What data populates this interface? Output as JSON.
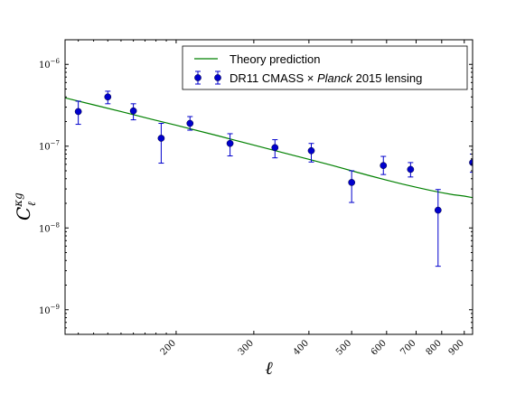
{
  "chart_data": {
    "type": "scatter",
    "xscale": "log",
    "yscale": "log",
    "xlim": [
      112,
      940
    ],
    "ylim": [
      5e-10,
      2e-06
    ],
    "xticks": [
      200,
      300,
      400,
      500,
      600,
      700,
      800,
      900
    ],
    "xtick_labels": [
      "200",
      "300",
      "400",
      "500",
      "600",
      "700",
      "800",
      "900"
    ],
    "yticks": [
      1e-09,
      1e-08,
      1e-07,
      1e-06
    ],
    "ytick_labels": [
      {
        "base": "10",
        "exp": "−9"
      },
      {
        "base": "10",
        "exp": "−8"
      },
      {
        "base": "10",
        "exp": "−7"
      },
      {
        "base": "10",
        "exp": "−6"
      }
    ],
    "xlabel": "ℓ",
    "ylabel": {
      "base": "C",
      "sup": "κg",
      "sub": "ℓ"
    },
    "legend_position": "top-right",
    "legend": [
      {
        "kind": "line",
        "label": "Theory prediction"
      },
      {
        "kind": "errorbar",
        "label_parts": [
          {
            "text": "DR11 CMASS ",
            "italic": false
          },
          {
            "text": "×",
            "italic": false
          },
          {
            "text": " ",
            "italic": false
          },
          {
            "text": "Planck",
            "italic": true
          },
          {
            "text": " 2015 lensing",
            "italic": false
          }
        ]
      }
    ],
    "series": [
      {
        "kind": "line",
        "color": "#008000",
        "x": [
          112,
          130,
          150,
          175,
          200,
          250,
          300,
          350,
          400,
          450,
          500,
          550,
          600,
          650,
          700,
          750,
          800,
          850,
          900,
          940
        ],
        "y": [
          3.9e-07,
          3.2e-07,
          2.65e-07,
          2.15e-07,
          1.8e-07,
          1.33e-07,
          1.03e-07,
          8.3e-08,
          6.9e-08,
          5.85e-08,
          5e-08,
          4.35e-08,
          3.85e-08,
          3.45e-08,
          3.15e-08,
          2.9e-08,
          2.7e-08,
          2.55e-08,
          2.45e-08,
          2.35e-08
        ]
      },
      {
        "kind": "errorbar",
        "color": "#0000cc",
        "x": [
          120,
          140,
          160,
          185,
          215,
          265,
          335,
          405,
          500,
          590,
          680,
          785,
          940
        ],
        "y": [
          2.65e-07,
          4e-07,
          2.7e-07,
          1.25e-07,
          1.9e-07,
          1.08e-07,
          9.6e-08,
          8.8e-08,
          3.6e-08,
          5.8e-08,
          5.2e-08,
          1.65e-08,
          6.3e-08
        ],
        "yerr_low": [
          1.85e-07,
          3.3e-07,
          2.1e-07,
          6.2e-08,
          1.57e-07,
          7.6e-08,
          7.2e-08,
          6.4e-08,
          2.05e-08,
          4.5e-08,
          4.2e-08,
          3.4e-09,
          4.8e-08
        ],
        "yerr_high": [
          3.55e-07,
          4.7e-07,
          3.3e-07,
          1.9e-07,
          2.3e-07,
          1.42e-07,
          1.2e-07,
          1.08e-07,
          5e-08,
          7.5e-08,
          6.3e-08,
          2.95e-08,
          8e-08
        ]
      }
    ]
  }
}
